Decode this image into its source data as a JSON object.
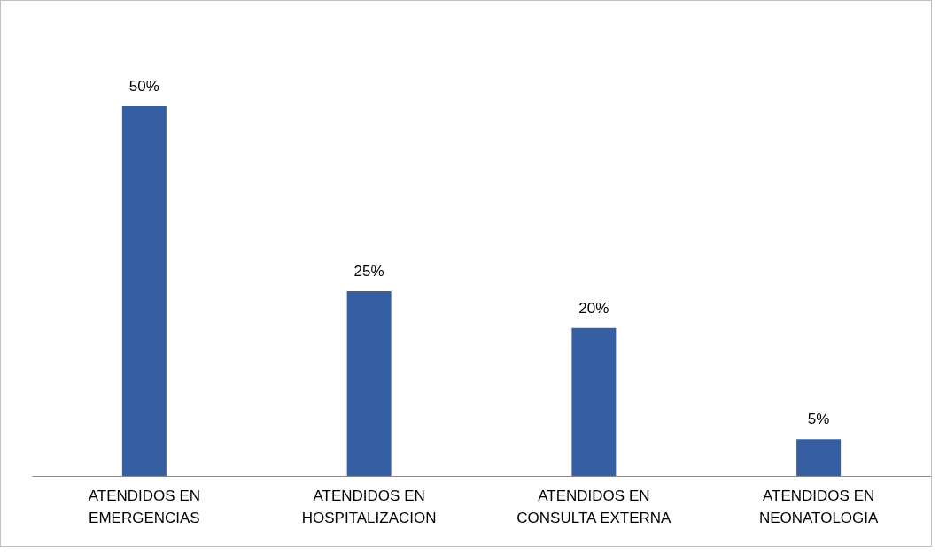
{
  "chart_data": {
    "type": "bar",
    "categories": [
      "ATENDIDOS EN EMERGENCIAS",
      "ATENDIDOS EN HOSPITALIZACION",
      "ATENDIDOS EN CONSULTA EXTERNA",
      "ATENDIDOS EN NEONATOLOGIA"
    ],
    "values": [
      50,
      25,
      20,
      5
    ],
    "value_labels": [
      "50%",
      "25%",
      "20%",
      "5%"
    ],
    "color": "#365fa3"
  }
}
